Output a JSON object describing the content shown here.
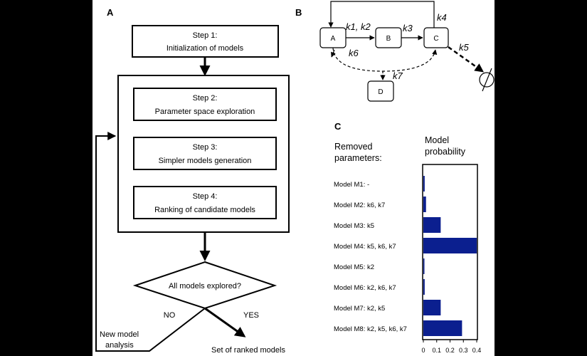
{
  "panel_a": {
    "label": "A",
    "steps": [
      {
        "title": "Step 1:",
        "subtitle": "Initialization of models"
      },
      {
        "title": "Step 2:",
        "subtitle": "Parameter space exploration"
      },
      {
        "title": "Step 3:",
        "subtitle": "Simpler models generation"
      },
      {
        "title": "Step 4:",
        "subtitle": "Ranking of candidate models"
      }
    ],
    "decision": "All models explored?",
    "no_label": "NO",
    "yes_label": "YES",
    "loop_label_line1": "New model",
    "loop_label_line2": "analysis",
    "output_label": "Set of ranked models"
  },
  "panel_b": {
    "label": "B",
    "nodes": [
      "A",
      "B",
      "C",
      "D"
    ],
    "rates": {
      "k1k2": "k1, k2",
      "k3": "k3",
      "k4": "k4",
      "k5": "k5",
      "k6": "k6",
      "k7": "k7"
    },
    "sink_symbol": "∅"
  },
  "panel_c": {
    "label": "C",
    "removed_header_line1": "Removed",
    "removed_header_line2": "parameters:",
    "prob_header_line1": "Model",
    "prob_header_line2": "probability",
    "rows": [
      {
        "model": "Model M1:",
        "removed": "-"
      },
      {
        "model": "Model M2:",
        "removed": "k6, k7"
      },
      {
        "model": "Model M3:",
        "removed": "k5"
      },
      {
        "model": "Model M4:",
        "removed": "k5, k6, k7"
      },
      {
        "model": "Model M5:",
        "removed": "k2"
      },
      {
        "model": "Model M6:",
        "removed": "k2, k6, k7"
      },
      {
        "model": "Model M7:",
        "removed": "k2, k5"
      },
      {
        "model": "Model M8:",
        "removed": "k2, k5, k6, k7"
      }
    ]
  },
  "chart_data": {
    "type": "bar",
    "orientation": "horizontal",
    "categories": [
      "Model M1",
      "Model M2",
      "Model M3",
      "Model M4",
      "Model M5",
      "Model M6",
      "Model M7",
      "Model M8"
    ],
    "values": [
      0.01,
      0.02,
      0.13,
      0.4,
      0.005,
      0.01,
      0.13,
      0.29
    ],
    "xlim": [
      0,
      0.4
    ],
    "xticks": [
      "0",
      "0.1",
      "0.2",
      "0.3",
      "0.4"
    ],
    "bar_color": "#0b1f8f"
  }
}
